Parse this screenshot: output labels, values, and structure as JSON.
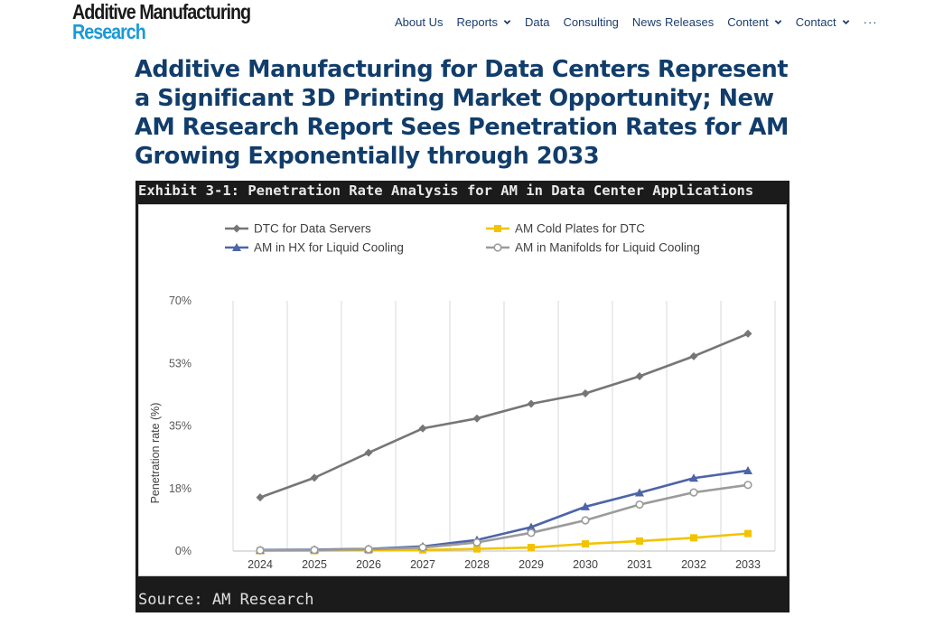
{
  "header": {
    "logo_line1": "Additive Manufacturing",
    "logo_line2": "Research",
    "nav": [
      {
        "label": "About Us",
        "dropdown": false
      },
      {
        "label": "Reports",
        "dropdown": true
      },
      {
        "label": "Data",
        "dropdown": false
      },
      {
        "label": "Consulting",
        "dropdown": false
      },
      {
        "label": "News Releases",
        "dropdown": false
      },
      {
        "label": "Content",
        "dropdown": true
      },
      {
        "label": "Contact",
        "dropdown": true
      }
    ],
    "more_label": "···"
  },
  "article": {
    "title": "Additive Manufacturing for Data Centers Represent a Significant 3D Printing Market Opportunity; New AM Research Report Sees Penetration Rates for AM Growing Exponentially through 2033"
  },
  "exhibit": {
    "title": "Exhibit 3-1: Penetration Rate Analysis for AM in Data Center Applications",
    "source": "Source: AM Research"
  },
  "colors": {
    "nav_text": "#1c3d6e",
    "title": "#113d6b",
    "logo_accent": "#1c9ad6",
    "series_dtc": "#767676",
    "series_cold": "#f2c300",
    "series_hx": "#4d64a8",
    "series_manifold": "#9b9b9b"
  },
  "chart_data": {
    "type": "line",
    "title": "Exhibit 3-1: Penetration Rate Analysis for AM in Data Center Applications",
    "xlabel": "",
    "ylabel": "Penetration rate (%)",
    "x": [
      "2024",
      "2025",
      "2026",
      "2027",
      "2028",
      "2029",
      "2030",
      "2031",
      "2032",
      "2033"
    ],
    "ylim": [
      0,
      70
    ],
    "yticks": [
      0,
      17.5,
      35,
      52.5,
      70
    ],
    "ytick_labels": [
      "0%",
      "18%",
      "35%",
      "53%",
      "70%"
    ],
    "grid": "vertical",
    "legend_position": "top",
    "series": [
      {
        "name": "DTC for Data Servers",
        "marker": "diamond",
        "color": "#767676",
        "values": [
          15,
          20.5,
          27.5,
          34.3,
          37.1,
          41.2,
          44.1,
          48.9,
          54.5,
          60.8
        ]
      },
      {
        "name": "AM Cold Plates for DTC",
        "marker": "square",
        "color": "#f2c300",
        "values": [
          0.1,
          0.1,
          0.2,
          0.3,
          0.6,
          1.0,
          2.0,
          2.8,
          3.7,
          4.9
        ]
      },
      {
        "name": "AM in HX for Liquid Cooling",
        "marker": "triangle",
        "color": "#4d64a8",
        "values": [
          0.3,
          0.4,
          0.6,
          1.3,
          3.1,
          6.7,
          12.4,
          16.3,
          20.4,
          22.5
        ]
      },
      {
        "name": "AM in Manifolds for Liquid Cooling",
        "marker": "circle",
        "color": "#9b9b9b",
        "values": [
          0.2,
          0.3,
          0.5,
          1.0,
          2.4,
          5.1,
          8.6,
          13.0,
          16.4,
          18.5
        ]
      }
    ]
  }
}
